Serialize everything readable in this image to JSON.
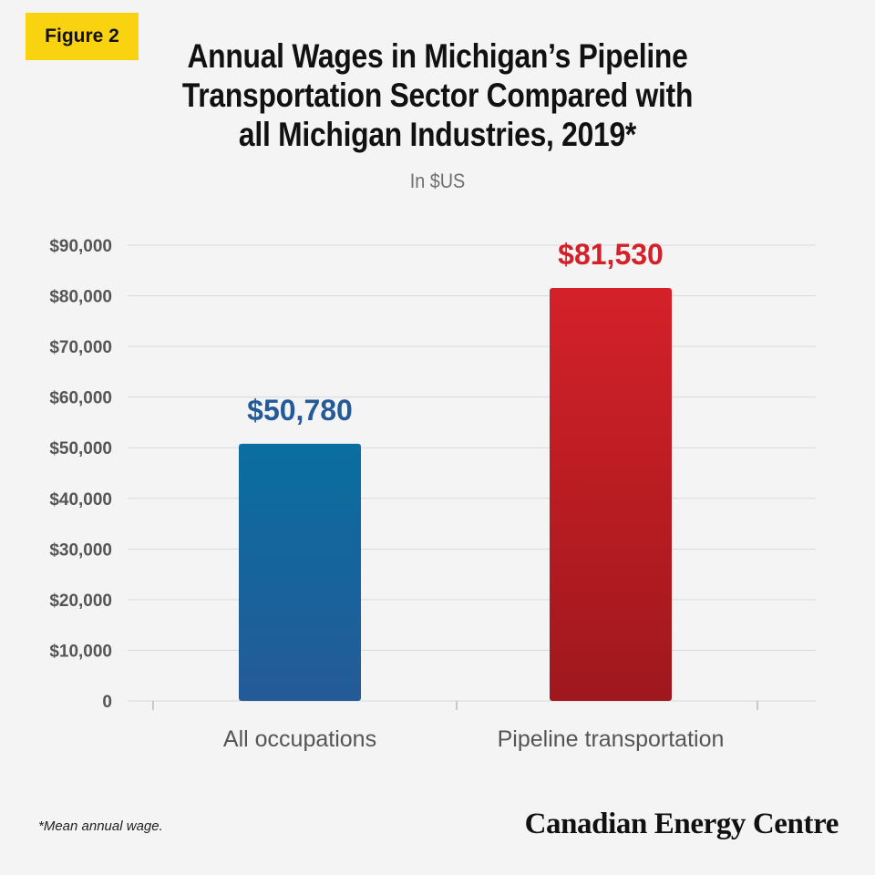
{
  "badge": "Figure 2",
  "title": "Annual Wages in Michigan’s Pipeline Transportation Sector Compared with all Michigan Industries, 2019*",
  "subtitle": "In $US",
  "footnote": "*Mean annual wage.",
  "brand": "Canadian Energy Centre",
  "colors": {
    "blue": "#0a6ea0",
    "blue_dark": "#245a98",
    "red": "#d42129",
    "red_dark": "#9f181d",
    "grid": "#d9d9d9",
    "axis_text": "#555555"
  },
  "chart_data": {
    "type": "bar",
    "title": "Annual Wages in Michigan’s Pipeline Transportation Sector Compared with all Michigan Industries, 2019*",
    "subtitle": "In $US",
    "categories": [
      "All occupations",
      "Pipeline transportation"
    ],
    "values": [
      50780,
      81530
    ],
    "value_labels": [
      "$50,780",
      "$81,530"
    ],
    "ylim": [
      0,
      90000
    ],
    "yticks": [
      0,
      10000,
      20000,
      30000,
      40000,
      50000,
      60000,
      70000,
      80000,
      90000
    ],
    "ytick_labels": [
      "0",
      "$10,000",
      "$20,000",
      "$30,000",
      "$40,000",
      "$50,000",
      "$60,000",
      "$70,000",
      "$80,000",
      "$90,000"
    ],
    "grid": true,
    "legend": "none"
  }
}
